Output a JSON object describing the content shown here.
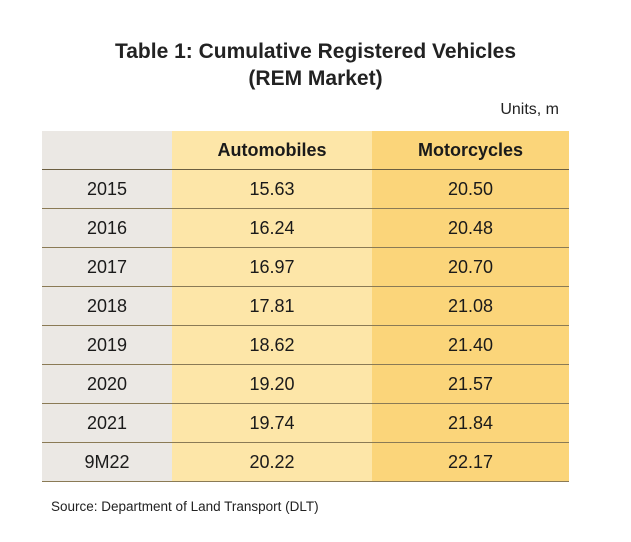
{
  "title_line1": "Table 1: Cumulative Registered Vehicles",
  "title_line2": "(REM Market)",
  "units": "Units, m",
  "source": "Source: Department of Land Transport (DLT)",
  "colors": {
    "year_column": "#ebe8e4",
    "automobiles_column": "#fde6a8",
    "motorcycles_column": "#fbd57a"
  },
  "chart_data": {
    "type": "table",
    "title": "Table 1: Cumulative Registered Vehicles (REM Market)",
    "columns": [
      "",
      "Automobiles",
      "Motorcycles"
    ],
    "rows": [
      {
        "year": "2015",
        "automobiles": "15.63",
        "motorcycles": "20.50"
      },
      {
        "year": "2016",
        "automobiles": "16.24",
        "motorcycles": "20.48"
      },
      {
        "year": "2017",
        "automobiles": "16.97",
        "motorcycles": "20.70"
      },
      {
        "year": "2018",
        "automobiles": "17.81",
        "motorcycles": "21.08"
      },
      {
        "year": "2019",
        "automobiles": "18.62",
        "motorcycles": "21.40"
      },
      {
        "year": "2020",
        "automobiles": "19.20",
        "motorcycles": "21.57"
      },
      {
        "year": "2021",
        "automobiles": "19.74",
        "motorcycles": "21.84"
      },
      {
        "year": "9M22",
        "automobiles": "20.22",
        "motorcycles": "22.17"
      }
    ]
  }
}
